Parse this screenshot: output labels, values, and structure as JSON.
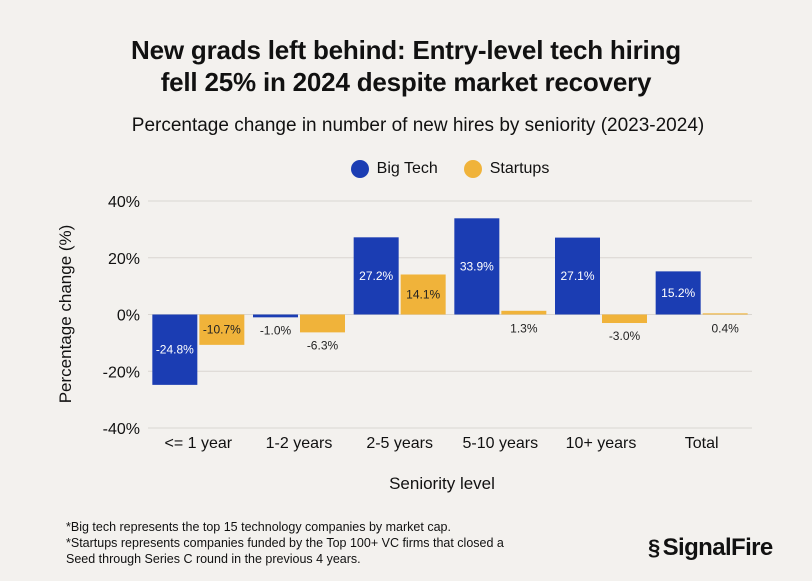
{
  "title_line1": "New grads left behind: Entry-level tech hiring",
  "title_line2": "fell 25% in 2024 despite market recovery",
  "footnotes": [
    "*Big tech represents the top 15 technology companies by market cap.",
    "*Startups represents companies funded by the Top 100+ VC firms that closed a",
    "Seed through Series C round in the previous 4 years."
  ],
  "logo_text": "SignalFire",
  "logo_mark": "§",
  "colors": {
    "big_tech": "#1b3db3",
    "startups": "#f0b33a",
    "grid": "#d9d6d1",
    "inside_label": "#ffffff",
    "outside_label": "#222222"
  },
  "chart_data": {
    "type": "bar",
    "title": "Percentage change in number of new hires by seniority (2023-2024)",
    "xlabel": "Seniority level",
    "ylabel": "Percentage change (%)",
    "ylim": [
      -40,
      40
    ],
    "yticks": [
      40,
      20,
      0,
      -20,
      -40
    ],
    "ytick_labels": [
      "40%",
      "20%",
      "0%",
      "-20%",
      "-40%"
    ],
    "grid": true,
    "legend_position": "top-center",
    "categories": [
      "<= 1 year",
      "1-2 years",
      "2-5 years",
      "5-10 years",
      "10+ years",
      "Total"
    ],
    "series": [
      {
        "name": "Big Tech",
        "values": [
          -24.8,
          -1.0,
          27.2,
          33.9,
          27.1,
          15.2
        ],
        "labels": [
          "-24.8%",
          "-1.0%",
          "27.2%",
          "33.9%",
          "27.1%",
          "15.2%"
        ]
      },
      {
        "name": "Startups",
        "values": [
          -10.7,
          -6.3,
          14.1,
          1.3,
          -3.0,
          0.4
        ],
        "labels": [
          "-10.7%",
          "-6.3%",
          "14.1%",
          "1.3%",
          "-3.0%",
          "0.4%"
        ]
      }
    ]
  }
}
